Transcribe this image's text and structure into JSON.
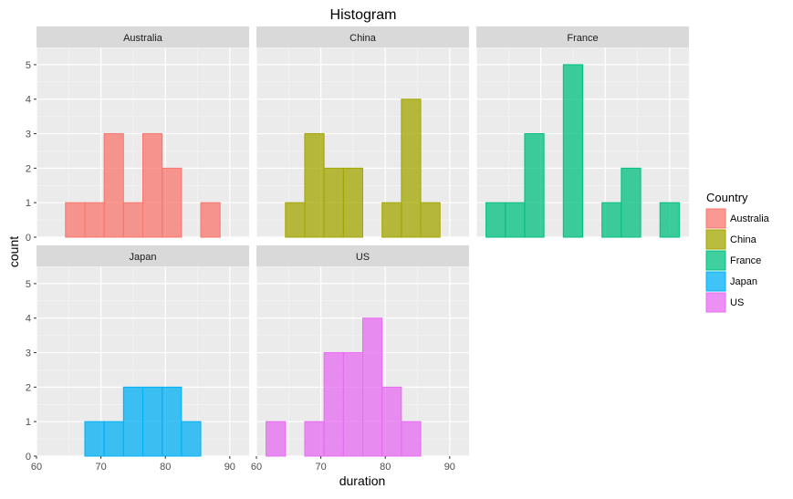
{
  "chart_data": {
    "type": "bar",
    "subtype": "faceted-histogram",
    "title": "Histogram",
    "xlabel": "duration",
    "ylabel": "count",
    "xlim": [
      60,
      93
    ],
    "ylim": [
      0,
      5.5
    ],
    "x_ticks": [
      60,
      70,
      80,
      90
    ],
    "y_ticks": [
      0,
      1,
      2,
      3,
      4,
      5
    ],
    "bin_edges": [
      61.5,
      64.5,
      67.5,
      70.5,
      73.5,
      76.5,
      79.5,
      82.5,
      85.5,
      88.5,
      91.5
    ],
    "bin_width": 3,
    "legend": {
      "title": "Country",
      "position": "right",
      "items": [
        "Australia",
        "China",
        "France",
        "Japan",
        "US"
      ]
    },
    "series": [
      {
        "name": "Australia",
        "color": "#F8766D",
        "values": [
          0,
          1,
          1,
          3,
          1,
          3,
          2,
          0,
          1,
          0
        ]
      },
      {
        "name": "China",
        "color": "#A3A500",
        "values": [
          0,
          1,
          3,
          2,
          2,
          0,
          1,
          4,
          1,
          0
        ]
      },
      {
        "name": "France",
        "color": "#00BF7D",
        "values": [
          1,
          1,
          3,
          0,
          5,
          0,
          1,
          2,
          0,
          1
        ]
      },
      {
        "name": "Japan",
        "color": "#00B0F6",
        "values": [
          0,
          0,
          1,
          1,
          2,
          2,
          2,
          1,
          0,
          0
        ]
      },
      {
        "name": "US",
        "color": "#E76BF3",
        "values": [
          1,
          0,
          1,
          3,
          3,
          4,
          2,
          1,
          0,
          0
        ]
      }
    ],
    "grid": true
  }
}
